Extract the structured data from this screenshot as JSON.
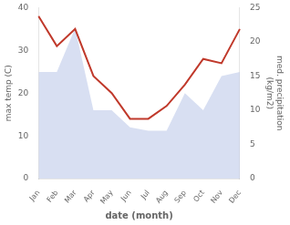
{
  "chart_data": {
    "type": "line",
    "categories": [
      "Jan",
      "Feb",
      "Mar",
      "Apr",
      "May",
      "Jun",
      "Jul",
      "Aug",
      "Sep",
      "Oct",
      "Nov",
      "Dec"
    ],
    "xlabel": "date (month)",
    "ylabel": "max temp (C)",
    "y2label": "med. precipitation\n(kg/m2)",
    "series": [
      {
        "type": "area",
        "color": "#b8c4e8",
        "axis": "y2",
        "values": [
          15.6,
          15.6,
          22,
          10,
          10,
          7.5,
          7,
          7,
          12.5,
          10,
          15,
          15.6
        ]
      },
      {
        "type": "line",
        "color": "#c0392b",
        "values": [
          38,
          31,
          35,
          24,
          20,
          14,
          14,
          17,
          22,
          28,
          27,
          35
        ]
      }
    ],
    "ylim": [
      0,
      40
    ],
    "yticks": [
      0,
      10,
      20,
      30,
      40
    ],
    "y2lim": [
      0,
      25
    ],
    "y2ticks": [
      0,
      5,
      10,
      15,
      20,
      25
    ],
    "grid": false
  }
}
